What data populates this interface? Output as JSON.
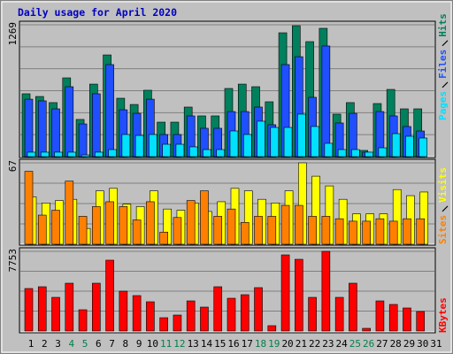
{
  "chart_data": [
    {
      "type": "bar",
      "title": "Daily usage for April 2020",
      "ylim": [
        0,
        1269
      ],
      "yticks": [
        1269
      ],
      "grid": true,
      "series": [
        {
          "name": "Hits",
          "color": "#00805c",
          "values": [
            605,
            579,
            520,
            758,
            358,
            698,
            979,
            562,
            502,
            639,
            332,
            332,
            477,
            392,
            392,
            656,
            698,
            673,
            528,
            1192,
            1260,
            1107,
            1235,
            409,
            520,
            60,
            511,
            647,
            460,
            460,
            null
          ]
        },
        {
          "name": "Files",
          "color": "#1f4fff",
          "values": [
            553,
            537,
            460,
            673,
            315,
            605,
            886,
            451,
            417,
            553,
            213,
            213,
            392,
            273,
            273,
            434,
            434,
            477,
            307,
            886,
            962,
            571,
            1065,
            324,
            417,
            43,
            434,
            392,
            290,
            247,
            null
          ]
        },
        {
          "name": "Pages",
          "color": "#00e0ff",
          "values": [
            43,
            43,
            43,
            43,
            17,
            43,
            68,
            213,
            204,
            213,
            119,
            119,
            94,
            68,
            68,
            247,
            213,
            341,
            281,
            281,
            409,
            290,
            128,
            68,
            68,
            43,
            85,
            221,
            196,
            179,
            null
          ]
        }
      ]
    },
    {
      "type": "bar",
      "ylim": [
        0,
        67
      ],
      "yticks": [
        67
      ],
      "grid": true,
      "series": [
        {
          "name": "Visits",
          "color": "#ffff00",
          "values": [
            39,
            34,
            36,
            37,
            13,
            44,
            46,
            33,
            31,
            44,
            29,
            28,
            34,
            27,
            35,
            46,
            44,
            37,
            34,
            44,
            67,
            56,
            48,
            37,
            25,
            25,
            25,
            45,
            40,
            43,
            null
          ]
        },
        {
          "name": "Sites",
          "color": "#ff8000",
          "values": [
            60,
            24,
            28,
            52,
            23,
            31,
            35,
            31,
            20,
            35,
            10,
            22,
            36,
            44,
            23,
            29,
            18,
            23,
            23,
            32,
            32,
            23,
            23,
            21,
            19,
            19,
            21,
            19,
            21,
            21,
            null
          ]
        }
      ]
    },
    {
      "type": "bar",
      "ylim": [
        0,
        7753
      ],
      "yticks": [
        7753
      ],
      "grid": true,
      "categories": [
        "1",
        "2",
        "3",
        "4",
        "5",
        "6",
        "7",
        "8",
        "9",
        "10",
        "11",
        "12",
        "13",
        "14",
        "15",
        "16",
        "17",
        "18",
        "19",
        "20",
        "21",
        "22",
        "23",
        "24",
        "25",
        "26",
        "27",
        "28",
        "29",
        "30",
        "31"
      ],
      "category_colors": [
        "#000000",
        "#000000",
        "#000000",
        "#00804b",
        "#00804b",
        "#000000",
        "#000000",
        "#000000",
        "#000000",
        "#000000",
        "#00804b",
        "#00804b",
        "#000000",
        "#000000",
        "#000000",
        "#000000",
        "#000000",
        "#00804b",
        "#00804b",
        "#000000",
        "#000000",
        "#000000",
        "#000000",
        "#000000",
        "#00804b",
        "#00804b",
        "#000000",
        "#000000",
        "#000000",
        "#000000",
        "#000000"
      ],
      "series": [
        {
          "name": "KBytes",
          "color": "#ff0000",
          "values": [
            4135,
            4307,
            3273,
            4652,
            2067,
            4652,
            6892,
            3876,
            3446,
            2843,
            1292,
            1551,
            2929,
            2326,
            4307,
            3187,
            3532,
            4221,
            517,
            7408,
            6978,
            3273,
            7753,
            3273,
            4652,
            258,
            2929,
            2584,
            2240,
            1895,
            null
          ]
        }
      ]
    }
  ]
}
